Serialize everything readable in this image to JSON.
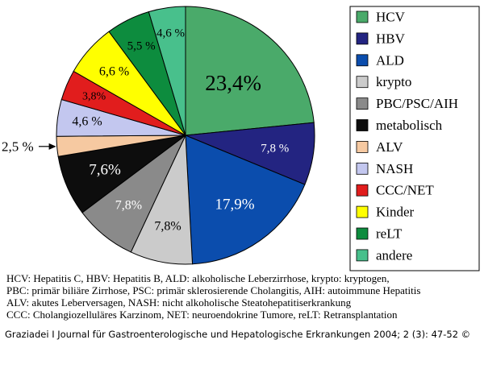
{
  "chart_data": {
    "type": "pie",
    "slices": [
      {
        "name": "HCV",
        "value": 23.4,
        "label": "23,4%",
        "color": "#4aaa6a"
      },
      {
        "name": "HBV",
        "value": 7.8,
        "label": "7,8 %",
        "color": "#232481"
      },
      {
        "name": "ALD",
        "value": 17.9,
        "label": "17,9%",
        "color": "#0b4dad"
      },
      {
        "name": "krypto",
        "value": 7.8,
        "label": "7,8%",
        "color": "#cbcbcb"
      },
      {
        "name": "PBC/PSC/AIH",
        "value": 7.8,
        "label": "7,8%",
        "color": "#8a8a8a"
      },
      {
        "name": "metabolisch",
        "value": 7.6,
        "label": "7,6%",
        "color": "#0d0d0d"
      },
      {
        "name": "ALV",
        "value": 2.5,
        "label": "2,5 %",
        "color": "#f6c9a1"
      },
      {
        "name": "NASH",
        "value": 4.6,
        "label": "4,6 %",
        "color": "#c3c7ef"
      },
      {
        "name": "CCC/NET",
        "value": 3.8,
        "label": "3,8%",
        "color": "#e11d1d"
      },
      {
        "name": "Kinder",
        "value": 6.6,
        "label": "6,6 %",
        "color": "#ffff00"
      },
      {
        "name": "reLT",
        "value": 5.5,
        "label": "5,5 %",
        "color": "#0d8c3e"
      },
      {
        "name": "andere",
        "value": 4.6,
        "label": "4,6 %",
        "color": "#48c08c"
      }
    ],
    "legend_position": "right",
    "start_angle_deg": 0,
    "direction": "clockwise"
  },
  "caption": {
    "line1": "HCV: Hepatitis C, HBV: Hepatitis B, ALD: alkoholische Leberzirrhose, krypto: kryptogen,",
    "line2": "PBC: primär biliäre Zirrhose, PSC: primär sklerosierende Cholangitis, AIH: autoimmune Hepatitis",
    "line3": "ALV: akutes Leberversagen, NASH: nicht alkoholische Steatohepatitiserkrankung",
    "line4": "CCC: Cholangiozelluläres Karzinom, NET: neuroendokrine Tumore, reLT: Retransplantation"
  },
  "source": "Graziadei I Journal für Gastroenterologische und Hepatologische Erkrankungen 2004; 2 (3): 47-52 ©"
}
